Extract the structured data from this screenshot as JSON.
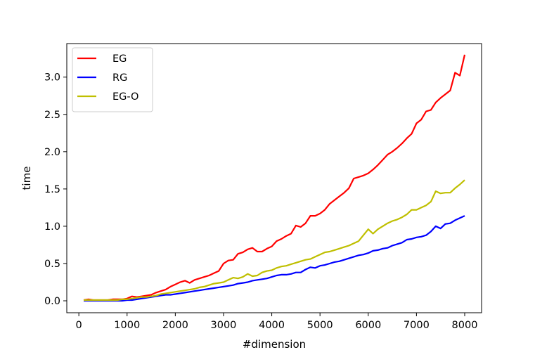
{
  "chart_data": {
    "type": "line",
    "title": "",
    "xlabel": "#dimension",
    "ylabel": "time",
    "xlim": [
      -250,
      8350
    ],
    "ylim": [
      -0.16,
      3.45
    ],
    "xticks": [
      0,
      1000,
      2000,
      3000,
      4000,
      5000,
      6000,
      7000,
      8000
    ],
    "xtick_labels": [
      "0",
      "1000",
      "2000",
      "3000",
      "4000",
      "5000",
      "6000",
      "7000",
      "8000"
    ],
    "yticks": [
      0.0,
      0.5,
      1.0,
      1.5,
      2.0,
      2.5,
      3.0
    ],
    "ytick_labels": [
      "0.0",
      "0.5",
      "1.0",
      "1.5",
      "2.0",
      "2.5",
      "3.0"
    ],
    "grid": false,
    "legend_position": "upper-left",
    "x": [
      100,
      200,
      300,
      400,
      500,
      600,
      700,
      800,
      900,
      1000,
      1100,
      1200,
      1300,
      1400,
      1500,
      1600,
      1700,
      1800,
      1900,
      2000,
      2100,
      2200,
      2300,
      2400,
      2500,
      2600,
      2700,
      2800,
      2900,
      3000,
      3100,
      3200,
      3300,
      3400,
      3500,
      3600,
      3700,
      3800,
      3900,
      4000,
      4100,
      4200,
      4300,
      4400,
      4500,
      4600,
      4700,
      4800,
      4900,
      5000,
      5100,
      5200,
      5300,
      5400,
      5500,
      5600,
      5700,
      5800,
      5900,
      6000,
      6100,
      6200,
      6300,
      6400,
      6500,
      6600,
      6700,
      6800,
      6900,
      7000,
      7100,
      7200,
      7300,
      7400,
      7500,
      7600,
      7700,
      7800,
      7900,
      8000
    ],
    "series": [
      {
        "name": "EG",
        "color": "#ff0000",
        "values": [
          0.01,
          0.02,
          0.01,
          0.01,
          0.01,
          0.01,
          0.02,
          0.02,
          0.02,
          0.03,
          0.06,
          0.05,
          0.06,
          0.07,
          0.08,
          0.11,
          0.13,
          0.15,
          0.19,
          0.22,
          0.25,
          0.27,
          0.24,
          0.28,
          0.3,
          0.32,
          0.34,
          0.37,
          0.4,
          0.5,
          0.54,
          0.55,
          0.63,
          0.65,
          0.69,
          0.71,
          0.66,
          0.66,
          0.7,
          0.73,
          0.8,
          0.83,
          0.87,
          0.9,
          1.01,
          0.99,
          1.04,
          1.14,
          1.14,
          1.17,
          1.22,
          1.3,
          1.35,
          1.4,
          1.45,
          1.51,
          1.64,
          1.66,
          1.68,
          1.71,
          1.76,
          1.82,
          1.89,
          1.96,
          2.0,
          2.05,
          2.11,
          2.18,
          2.24,
          2.38,
          2.43,
          2.54,
          2.56,
          2.66,
          2.72,
          2.77,
          2.82,
          3.06,
          3.02,
          3.3
        ]
      },
      {
        "name": "RG",
        "color": "#0000ff",
        "values": [
          0.0,
          0.0,
          0.0,
          0.0,
          0.0,
          0.0,
          0.0,
          0.0,
          0.0,
          0.01,
          0.01,
          0.02,
          0.03,
          0.04,
          0.05,
          0.06,
          0.07,
          0.08,
          0.08,
          0.09,
          0.1,
          0.11,
          0.12,
          0.13,
          0.14,
          0.15,
          0.16,
          0.17,
          0.18,
          0.19,
          0.2,
          0.21,
          0.23,
          0.24,
          0.25,
          0.27,
          0.28,
          0.29,
          0.3,
          0.32,
          0.34,
          0.35,
          0.35,
          0.36,
          0.38,
          0.38,
          0.42,
          0.45,
          0.44,
          0.47,
          0.48,
          0.5,
          0.52,
          0.53,
          0.55,
          0.57,
          0.59,
          0.61,
          0.62,
          0.64,
          0.67,
          0.68,
          0.7,
          0.71,
          0.74,
          0.76,
          0.78,
          0.82,
          0.83,
          0.85,
          0.86,
          0.88,
          0.93,
          1.0,
          0.97,
          1.03,
          1.04,
          1.08,
          1.11,
          1.14
        ]
      },
      {
        "name": "EG-O",
        "color": "#bfbf00",
        "values": [
          0.01,
          0.01,
          0.01,
          0.01,
          0.01,
          0.01,
          0.01,
          0.01,
          0.02,
          0.02,
          0.03,
          0.04,
          0.05,
          0.05,
          0.06,
          0.07,
          0.09,
          0.1,
          0.11,
          0.12,
          0.13,
          0.14,
          0.15,
          0.16,
          0.18,
          0.19,
          0.21,
          0.23,
          0.24,
          0.25,
          0.28,
          0.31,
          0.3,
          0.32,
          0.36,
          0.33,
          0.34,
          0.38,
          0.4,
          0.41,
          0.44,
          0.46,
          0.47,
          0.49,
          0.51,
          0.53,
          0.55,
          0.56,
          0.59,
          0.62,
          0.65,
          0.66,
          0.68,
          0.7,
          0.72,
          0.74,
          0.77,
          0.8,
          0.88,
          0.96,
          0.9,
          0.96,
          1.0,
          1.04,
          1.07,
          1.09,
          1.12,
          1.16,
          1.22,
          1.22,
          1.25,
          1.28,
          1.33,
          1.47,
          1.44,
          1.45,
          1.45,
          1.51,
          1.56,
          1.62
        ]
      }
    ]
  }
}
